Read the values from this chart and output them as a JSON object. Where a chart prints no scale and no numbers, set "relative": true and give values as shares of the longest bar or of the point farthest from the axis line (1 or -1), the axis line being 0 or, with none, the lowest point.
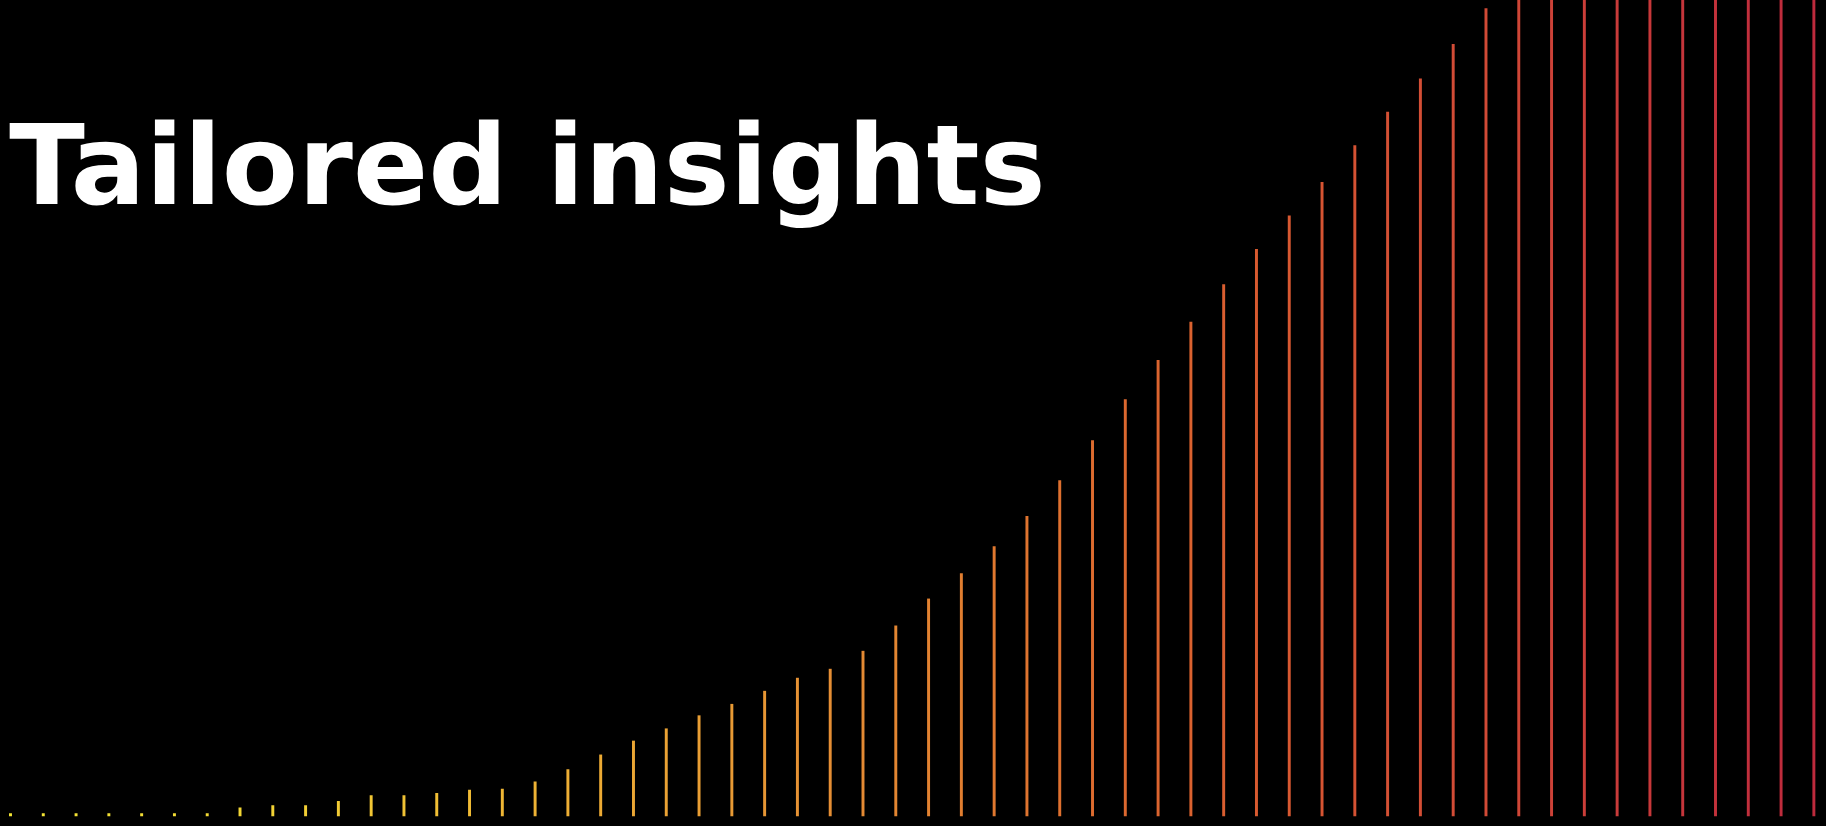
{
  "chart_data": {
    "type": "bar",
    "title": "Tailored insights",
    "relative": true,
    "categories": [
      null,
      null,
      null,
      null,
      null,
      null,
      null,
      null,
      null,
      null,
      null,
      null,
      null,
      null,
      null,
      null,
      null,
      null,
      null,
      null,
      null,
      null,
      null,
      null,
      null,
      null,
      null,
      null,
      null,
      null,
      null,
      null,
      null,
      null,
      null,
      null,
      null,
      null,
      null,
      null,
      null,
      null,
      null,
      null,
      null,
      null,
      null,
      null,
      null,
      null,
      null,
      null,
      null,
      null,
      null,
      null
    ],
    "values": [
      0.004,
      0.004,
      0.004,
      0.004,
      0.004,
      0.004,
      0.004,
      0.011,
      0.014,
      0.014,
      0.019,
      0.026,
      0.026,
      0.029,
      0.033,
      0.034,
      0.043,
      0.058,
      0.076,
      0.093,
      0.108,
      0.124,
      0.138,
      0.154,
      0.17,
      0.181,
      0.203,
      0.234,
      0.267,
      0.298,
      0.331,
      0.368,
      0.412,
      0.461,
      0.511,
      0.559,
      0.606,
      0.652,
      0.695,
      0.736,
      0.777,
      0.822,
      0.863,
      0.904,
      0.946,
      0.99,
      1,
      1,
      1,
      1,
      1,
      1,
      1,
      1,
      1,
      1
    ],
    "colors": [
      "#f4e634",
      "#f4e434",
      "#f4e234",
      "#f3e034",
      "#f3de34",
      "#f3dc34",
      "#f3da34",
      "#f2d634",
      "#f2d234",
      "#f2ce34",
      "#f1ca34",
      "#f1c634",
      "#f0c234",
      "#f0be34",
      "#efba34",
      "#efb634",
      "#eeb234",
      "#edae34",
      "#ecaa34",
      "#eba634",
      "#eaa234",
      "#e99e34",
      "#e89a34",
      "#e79634",
      "#e69234",
      "#e58e34",
      "#e48a33",
      "#e38632",
      "#e28231",
      "#e17e30",
      "#e0782f",
      "#df742f",
      "#de702f",
      "#dd6c2f",
      "#dc682f",
      "#db642f",
      "#da622f",
      "#d95e30",
      "#d85a30",
      "#d75831",
      "#d65432",
      "#d55233",
      "#d45034",
      "#d34e35",
      "#d24c36",
      "#d14a36",
      "#cf4637",
      "#cd4238",
      "#cb3e39",
      "#c93b3a",
      "#c7383a",
      "#c5353b",
      "#c3323b",
      "#c12f3c",
      "#bf2c3c",
      "#bd2a3c"
    ]
  }
}
